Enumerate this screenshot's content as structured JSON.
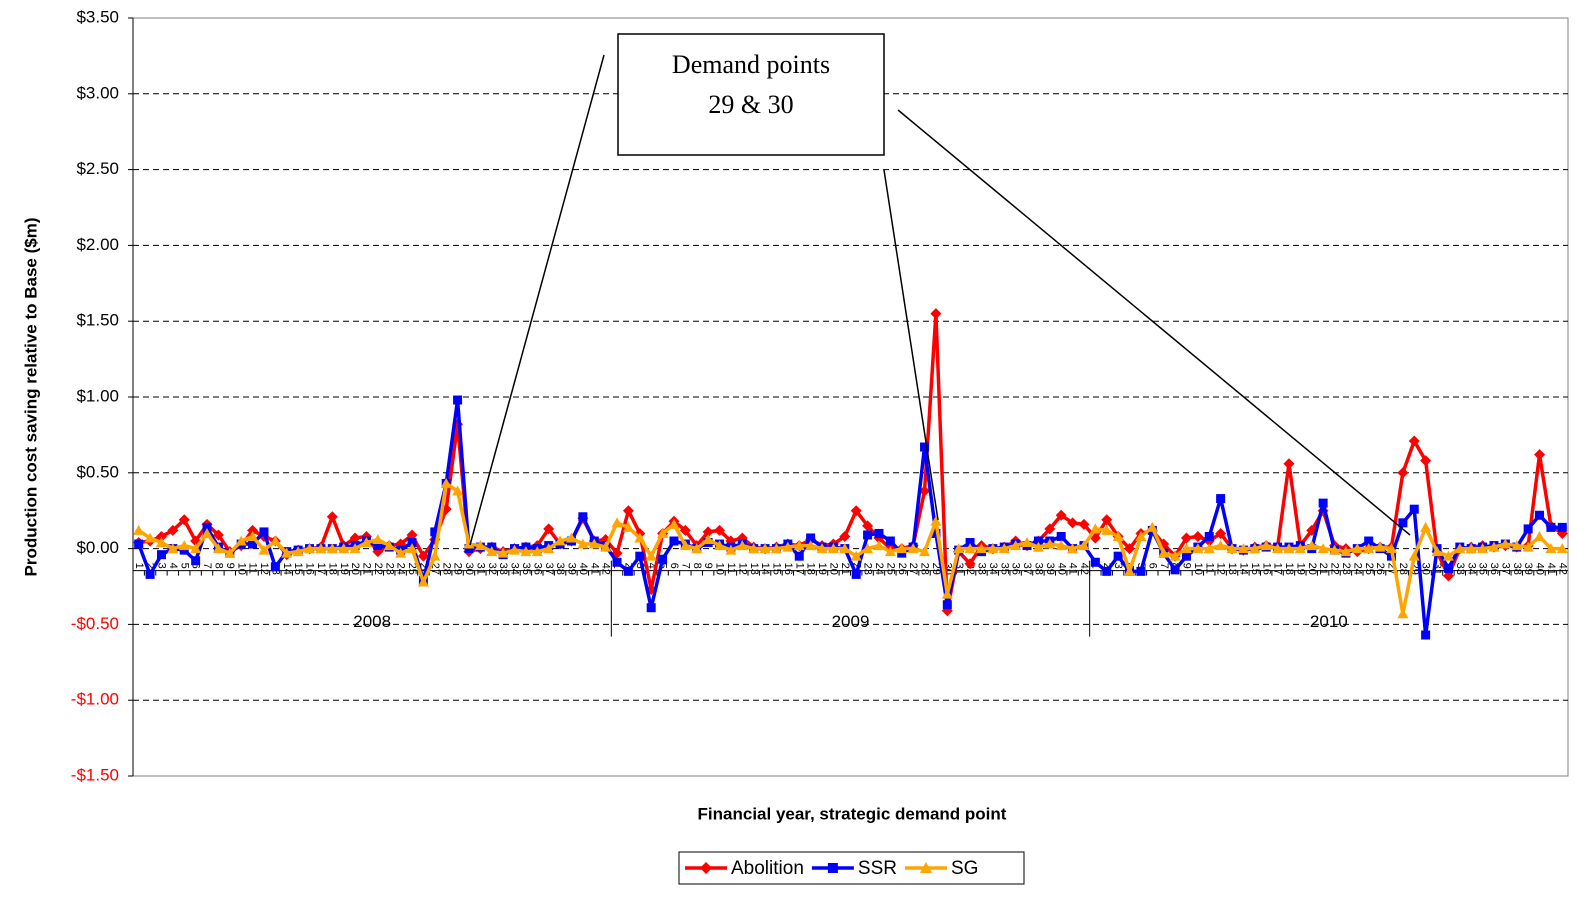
{
  "chart_data": {
    "type": "line",
    "x_label": "Financial year, strategic demand point",
    "y_label": "Production cost saving relative to Base ($m)",
    "annotation": [
      "Demand points",
      "29 & 30"
    ],
    "category_groups": [
      "2008",
      "2009",
      "2010"
    ],
    "categories": [
      "1",
      "2",
      "3",
      "4",
      "5",
      "6",
      "7",
      "8",
      "9",
      "10",
      "11",
      "12",
      "13",
      "14",
      "15",
      "16",
      "17",
      "18",
      "19",
      "20",
      "21",
      "22",
      "23",
      "24",
      "25",
      "26",
      "27",
      "28",
      "29",
      "30",
      "31",
      "32",
      "33",
      "34",
      "35",
      "36",
      "37",
      "38",
      "39",
      "40",
      "41",
      "42",
      "1",
      "2",
      "3",
      "4",
      "5",
      "6",
      "7",
      "8",
      "9",
      "10",
      "11",
      "12",
      "13",
      "14",
      "15",
      "16",
      "17",
      "18",
      "19",
      "20",
      "21",
      "22",
      "23",
      "24",
      "25",
      "26",
      "27",
      "28",
      "29",
      "30",
      "31",
      "32",
      "33",
      "34",
      "35",
      "36",
      "37",
      "38",
      "39",
      "40",
      "41",
      "42",
      "1",
      "2",
      "3",
      "4",
      "5",
      "6",
      "7",
      "8",
      "9",
      "10",
      "11",
      "12",
      "13",
      "14",
      "15",
      "16",
      "17",
      "18",
      "19",
      "20",
      "21",
      "22",
      "23",
      "24",
      "25",
      "26",
      "27",
      "28",
      "29",
      "30",
      "31",
      "32",
      "33",
      "34",
      "35",
      "36",
      "37",
      "38",
      "39",
      "40",
      "41",
      "42"
    ],
    "ylim": [
      -1.5,
      3.5
    ],
    "yticks": [
      {
        "value": -1.5,
        "label": "-$1.50"
      },
      {
        "value": -1.0,
        "label": "-$1.00"
      },
      {
        "value": -0.5,
        "label": "-$0.50"
      },
      {
        "value": 0,
        "label": "$0.00"
      },
      {
        "value": 0.5,
        "label": "$0.50"
      },
      {
        "value": 1.0,
        "label": "$1.00"
      },
      {
        "value": 1.5,
        "label": "$1.50"
      },
      {
        "value": 2.0,
        "label": "$2.00"
      },
      {
        "value": 2.5,
        "label": "$2.50"
      },
      {
        "value": 3.0,
        "label": "$3.00"
      },
      {
        "value": 3.5,
        "label": "$3.50"
      }
    ],
    "negative_label_color": "#ff0000",
    "grid": true,
    "legend": "bottom",
    "series": [
      {
        "name": "Abolition",
        "color": "#ff0000",
        "marker": "diamond",
        "values": [
          0.04,
          0.05,
          0.08,
          0.12,
          0.19,
          0.05,
          0.16,
          0.09,
          -0.02,
          0.02,
          0.12,
          0.08,
          0.05,
          -0.04,
          -0.01,
          0,
          0.01,
          0.21,
          0.02,
          0.07,
          0.08,
          -0.02,
          0.02,
          0.03,
          0.09,
          -0.05,
          0.06,
          0.26,
          0.82,
          -0.02,
          0,
          0.01,
          -0.02,
          0,
          0.01,
          0.02,
          0.13,
          0.03,
          0.05,
          0.2,
          0.05,
          0.06,
          -0.03,
          0.25,
          0.1,
          -0.27,
          0.1,
          0.18,
          0.12,
          0.02,
          0.11,
          0.12,
          0.05,
          0.07,
          0.01,
          0,
          0.01,
          0.03,
          0.02,
          0.06,
          0.02,
          0.03,
          0.08,
          0.25,
          0.15,
          0.07,
          0,
          0,
          0.02,
          0.38,
          1.55,
          -0.41,
          -0.02,
          -0.1,
          0.02,
          0,
          0.01,
          0.05,
          0.02,
          0.05,
          0.13,
          0.22,
          0.17,
          0.16,
          0.07,
          0.19,
          0.08,
          0,
          0.1,
          0.12,
          0.03,
          -0.05,
          0.07,
          0.08,
          0.05,
          0.1,
          0,
          -0.01,
          0.01,
          0.02,
          0.01,
          0.56,
          0.02,
          0.12,
          0.25,
          0.02,
          0,
          -0.02,
          0,
          0.01,
          0.01,
          0.5,
          0.71,
          0.58,
          -0.02,
          -0.18,
          0,
          0.01,
          0.02,
          0.01,
          0.02,
          0.01,
          0.02,
          0.62,
          0.15,
          0.1
        ]
      },
      {
        "name": "SSR",
        "color": "#0000ff",
        "marker": "square",
        "values": [
          0.03,
          -0.17,
          -0.04,
          0,
          -0.01,
          -0.08,
          0.14,
          0.01,
          -0.03,
          0.03,
          0.03,
          0.11,
          -0.12,
          -0.02,
          -0.01,
          0,
          0,
          0,
          0.01,
          0.02,
          0.05,
          0.02,
          0.01,
          -0.01,
          0.04,
          -0.21,
          0.11,
          0.43,
          0.98,
          0,
          0.01,
          0.01,
          -0.04,
          0,
          0.01,
          0,
          0.02,
          0.03,
          0.05,
          0.21,
          0.05,
          0.02,
          -0.09,
          -0.15,
          -0.05,
          -0.39,
          -0.07,
          0.05,
          0.03,
          0,
          0.04,
          0.03,
          0.01,
          0.03,
          0,
          0,
          0,
          0.03,
          -0.05,
          0.07,
          0.01,
          0.01,
          0,
          -0.17,
          0.09,
          0.1,
          0.05,
          -0.03,
          0.01,
          0.67,
          0.1,
          -0.37,
          -0.01,
          0.04,
          -0.02,
          0,
          0.01,
          0.03,
          0.02,
          0.05,
          0.05,
          0.08,
          0,
          0.02,
          -0.09,
          -0.15,
          -0.05,
          -0.15,
          -0.15,
          0.12,
          -0.03,
          -0.14,
          -0.05,
          0.01,
          0.08,
          0.33,
          0,
          -0.01,
          0,
          0.01,
          0.01,
          0.01,
          0.02,
          0,
          0.3,
          -0.01,
          -0.03,
          0,
          0.05,
          0,
          -0.05,
          0.17,
          0.26,
          -0.57,
          0,
          -0.13,
          0.01,
          0,
          0.01,
          0.02,
          0.03,
          0.01,
          0.13,
          0.22,
          0.14,
          0.14
        ]
      },
      {
        "name": "SG",
        "color": "#ffa500",
        "marker": "triangle",
        "values": [
          0.12,
          0.07,
          0.04,
          0,
          0.02,
          0,
          0.1,
          0,
          -0.03,
          0.05,
          0.08,
          -0.01,
          0.05,
          -0.03,
          -0.02,
          0,
          0,
          0,
          0,
          0,
          0.04,
          0.06,
          0.02,
          -0.03,
          0,
          -0.22,
          -0.05,
          0.43,
          0.38,
          0.03,
          0.02,
          -0.02,
          -0.03,
          -0.01,
          -0.02,
          -0.02,
          0,
          0.05,
          0.07,
          0.03,
          0.03,
          0.01,
          0.17,
          0.14,
          0.07,
          -0.05,
          0.1,
          0.16,
          0.02,
          0,
          0.06,
          0.02,
          -0.01,
          0.02,
          0,
          0,
          0,
          0.01,
          0.02,
          0.02,
          0,
          0,
          0,
          -0.05,
          0,
          0.02,
          -0.02,
          0,
          0,
          -0.02,
          0.18,
          -0.3,
          0,
          0,
          0,
          0,
          0,
          0.02,
          0.04,
          0.01,
          0.03,
          0.02,
          0,
          0.02,
          0.13,
          0.12,
          0.08,
          -0.15,
          0.08,
          0.14,
          -0.03,
          -0.05,
          0,
          0,
          0,
          0.02,
          0,
          0,
          0,
          0.02,
          0,
          0,
          0,
          0.02,
          0,
          -0.01,
          -0.02,
          0,
          0,
          0.01,
          0,
          -0.43,
          -0.05,
          0.14,
          -0.02,
          -0.05,
          0,
          0,
          0,
          0.01,
          0.03,
          0.02,
          0.01,
          0.08,
          0,
          0
        ]
      }
    ]
  }
}
